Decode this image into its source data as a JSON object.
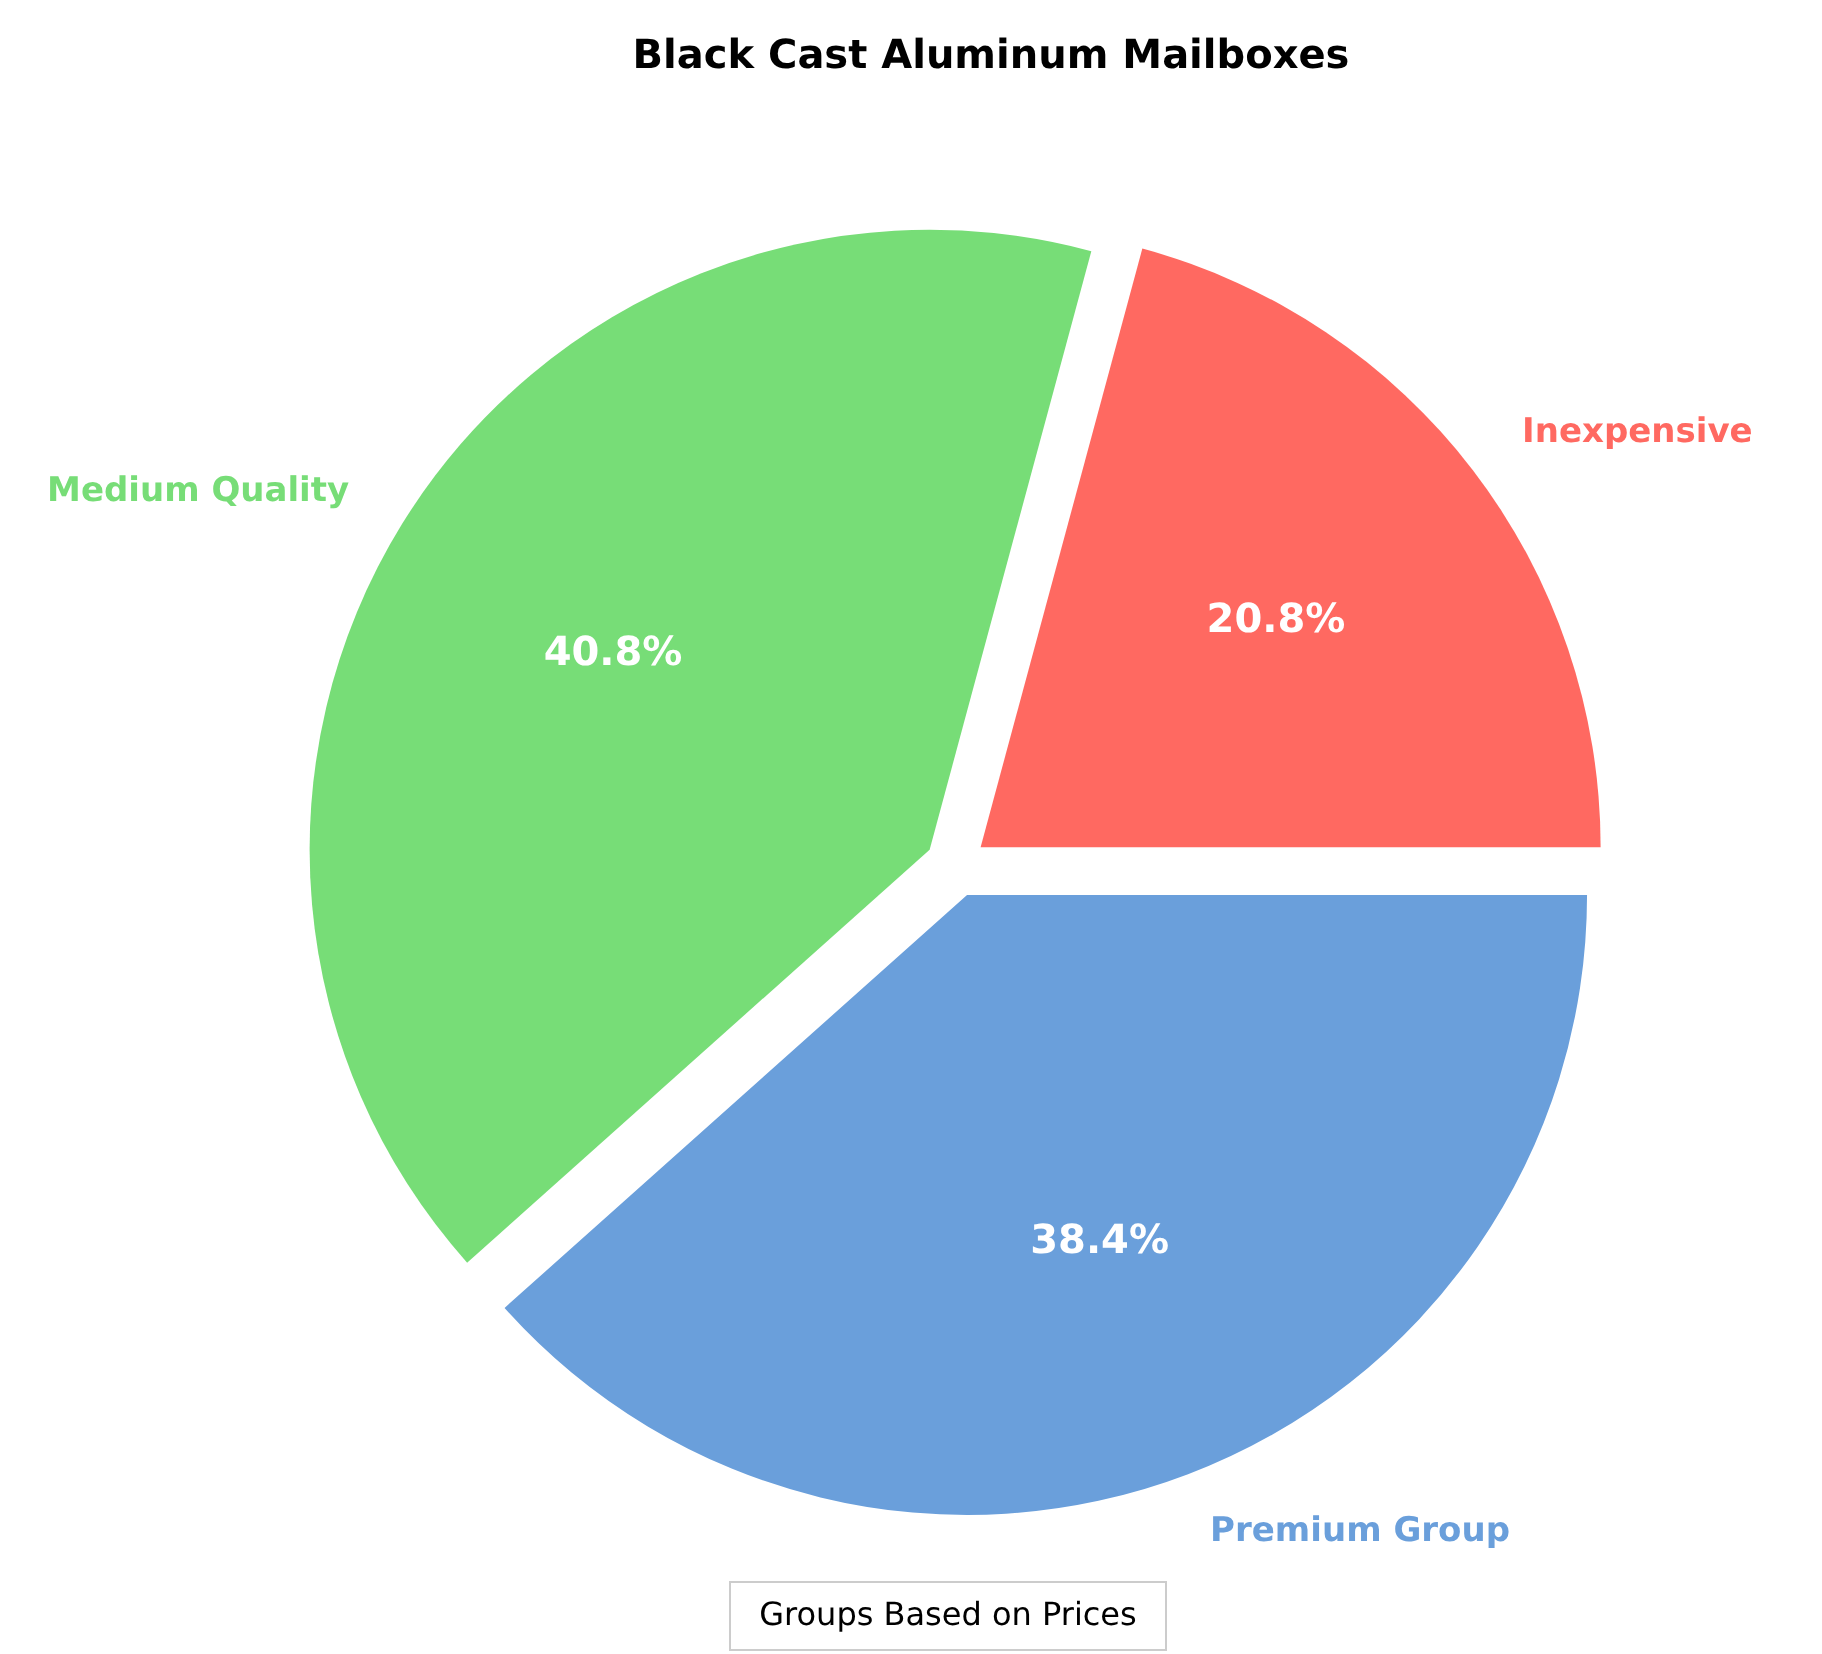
{
  "chart_data": {
    "type": "pie",
    "title": "Black Cast Aluminum Mailboxes",
    "categories": [
      "Inexpensive",
      "Medium Quality",
      "Premium Group"
    ],
    "values": [
      20.8,
      40.8,
      38.4
    ],
    "colors": [
      "#ff6961",
      "#77dd77",
      "#6a9fdb"
    ],
    "value_labels": [
      "20.8%",
      "40.8%",
      "38.4%"
    ],
    "annotations": [
      "Groups Based on Prices"
    ]
  }
}
